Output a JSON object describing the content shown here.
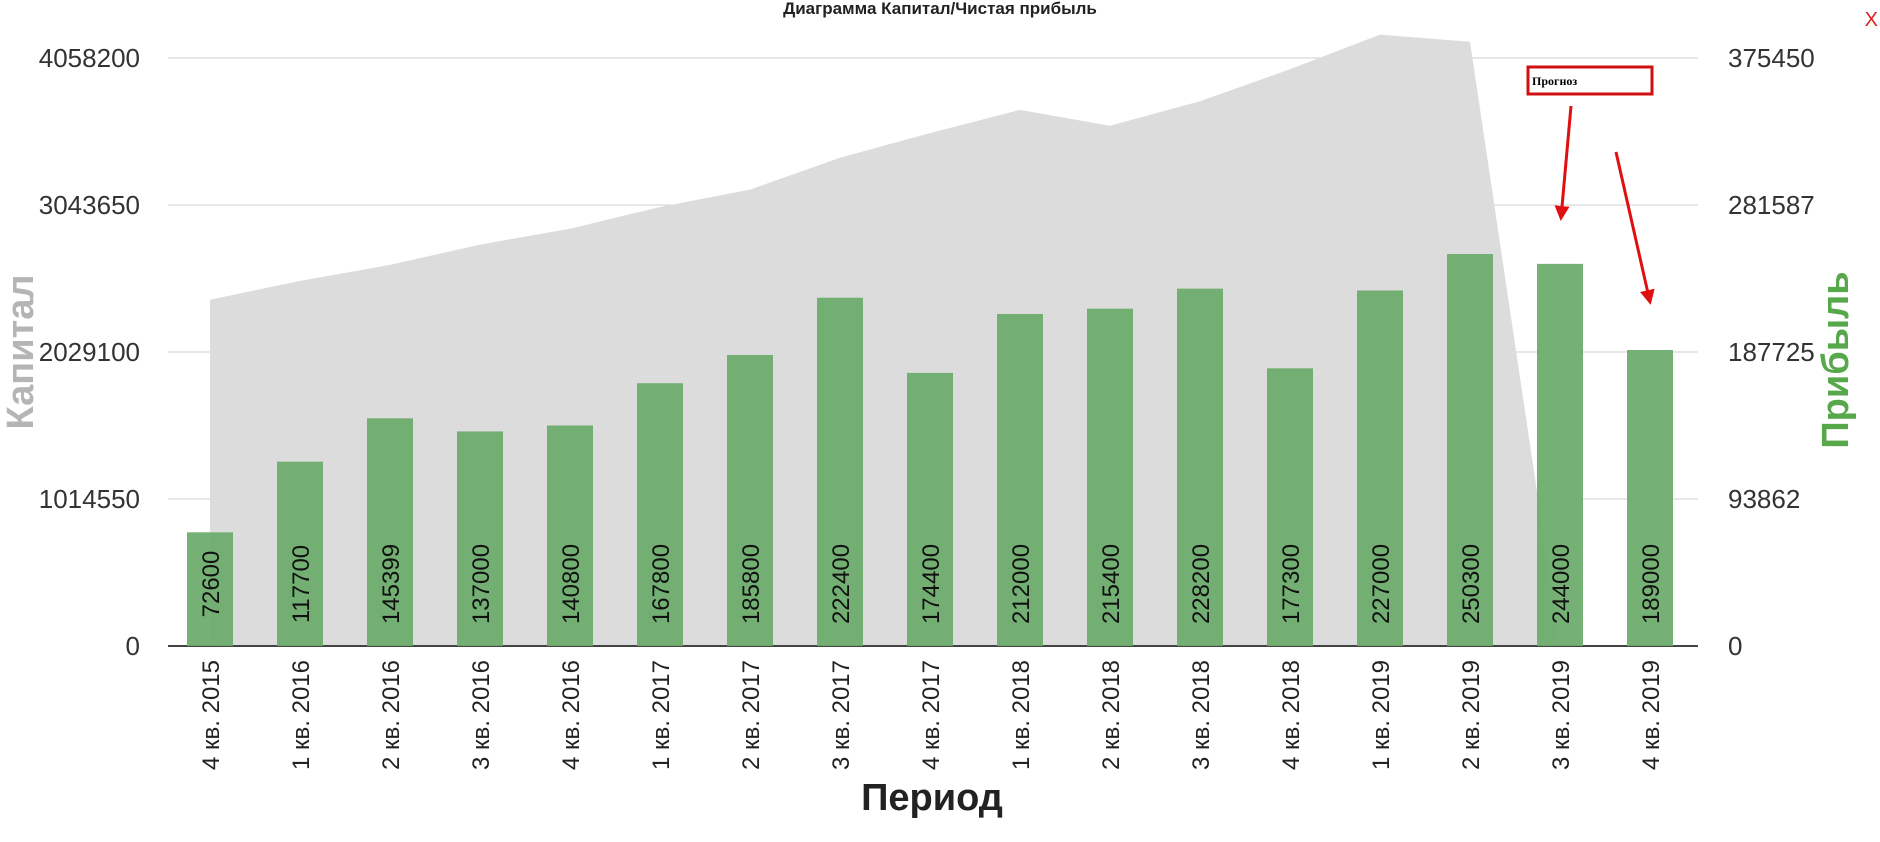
{
  "window": {
    "close_label": "X"
  },
  "chart_data": {
    "type": "bar",
    "title": "Диаграмма Капитал/Чистая прибыль",
    "xlabel": "Период",
    "ylabel_left": "Капитал",
    "ylabel_right": "Прибыль",
    "categories": [
      "4 кв. 2015",
      "1 кв. 2016",
      "2 кв. 2016",
      "3 кв. 2016",
      "4 кв. 2016",
      "1 кв. 2017",
      "2 кв. 2017",
      "3 кв. 2017",
      "4 кв. 2017",
      "1 кв. 2018",
      "2 кв. 2018",
      "3 кв. 2018",
      "4 кв. 2018",
      "1 кв. 2019",
      "2 кв. 2019",
      "3 кв. 2019",
      "4 кв. 2019"
    ],
    "series": [
      {
        "name": "Капитал",
        "type": "area",
        "axis": "left",
        "color": "#dcdcdc",
        "values": [
          2390000,
          2520000,
          2630000,
          2770000,
          2880000,
          3030000,
          3150000,
          3370000,
          3540000,
          3700000,
          3590000,
          3760000,
          3980000,
          4220000,
          4170000,
          0,
          0
        ]
      },
      {
        "name": "Прибыль",
        "type": "bar",
        "axis": "right",
        "color": "#6aab6a",
        "values": [
          72600,
          117700,
          145399,
          137000,
          140800,
          167800,
          185800,
          222400,
          174400,
          212000,
          215400,
          228200,
          177300,
          227000,
          250300,
          244000,
          189000
        ]
      }
    ],
    "y_left_ticks": [
      "0",
      "1014550",
      "2029100",
      "3043650",
      "4058200"
    ],
    "y_right_ticks": [
      "0",
      "93862",
      "187725",
      "281587",
      "375450"
    ],
    "ylim_left": [
      0,
      4058200
    ],
    "ylim_right": [
      0,
      375450
    ],
    "grid": true,
    "annotation": {
      "label": "Прогноз",
      "targets": [
        "3 кв. 2019",
        "4 кв. 2019"
      ]
    },
    "colors": {
      "left_axis_label": "#b5b5b5",
      "right_axis_label": "#57a84a",
      "arrow": "#e01010",
      "grid": "#cfcfcf"
    }
  }
}
